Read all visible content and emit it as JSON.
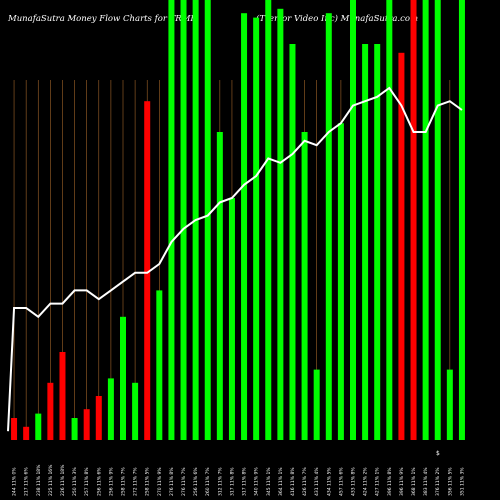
{
  "header": {
    "left_title": "MunafaSutra  Money Flow  Charts for TRMR",
    "right_title": "(Tremor Video  Inc) MunafaSutra.com"
  },
  "footnote": "$",
  "chart_data": {
    "type": "bar",
    "title": "MunafaSutra Money Flow Charts for TRMR (Tremor Video Inc)",
    "categories": [
      "244 11% 0%",
      "217 11% 6%",
      "238 11% 18%",
      "225 11% 16%",
      "226 11% 18%",
      "250 11% 3%",
      "257 11% 8%",
      "256 11% 6%",
      "256 11% 9%",
      "258 11% 7%",
      "272 11% 7%",
      "258 11% 5%",
      "270 11% 9%",
      "276 11% 8%",
      "276 11% 7%",
      "256 11% 6%",
      "260 11% 7%",
      "312 11% 7%",
      "317 11% 8%",
      "317 11% 8%",
      "340 11% 9%",
      "345 11% 1%",
      "364 11% 1%",
      "416 11% 8%",
      "426 11% 7%",
      "431 11% 4%",
      "434 11% 5%",
      "457 11% 6%",
      "433 11% 8%",
      "424 11% 2%",
      "427 11% 1%",
      "396 11% 8%",
      "396 11% 9%",
      "368 11% 1%",
      "383 11% 4%",
      "376 11% 2%",
      "356 11% 5%",
      "351 11% 3%"
    ],
    "series": [
      {
        "values": [
          5,
          3,
          6,
          13,
          20,
          5,
          7,
          10,
          14,
          28,
          13,
          77,
          34,
          100,
          100,
          100,
          100,
          70,
          55,
          97,
          96,
          100,
          98,
          90,
          70,
          16,
          97,
          72,
          100,
          90,
          90,
          100,
          88,
          100,
          100,
          100,
          16,
          100
        ],
        "colors": [
          "red",
          "red",
          "green",
          "red",
          "red",
          "green",
          "red",
          "red",
          "green",
          "green",
          "green",
          "red",
          "green",
          "green",
          "green",
          "green",
          "green",
          "green",
          "green",
          "green",
          "green",
          "green",
          "green",
          "green",
          "green",
          "green",
          "green",
          "green",
          "green",
          "green",
          "green",
          "green",
          "red",
          "red",
          "green",
          "green",
          "green",
          "green"
        ]
      },
      {
        "type": "line",
        "values": [
          30,
          30,
          28,
          31,
          31,
          34,
          34,
          32,
          34,
          36,
          38,
          38,
          40,
          45,
          48,
          50,
          51,
          54,
          55,
          58,
          60,
          64,
          63,
          65,
          68,
          67,
          70,
          72,
          76,
          77,
          78,
          80,
          76,
          70,
          70,
          76,
          77,
          75
        ]
      }
    ],
    "ylim": [
      0,
      100
    ],
    "colors": {
      "green": "#00ff00",
      "red": "#ff0000",
      "line": "#ffffff",
      "grid": "#a0642a"
    }
  }
}
